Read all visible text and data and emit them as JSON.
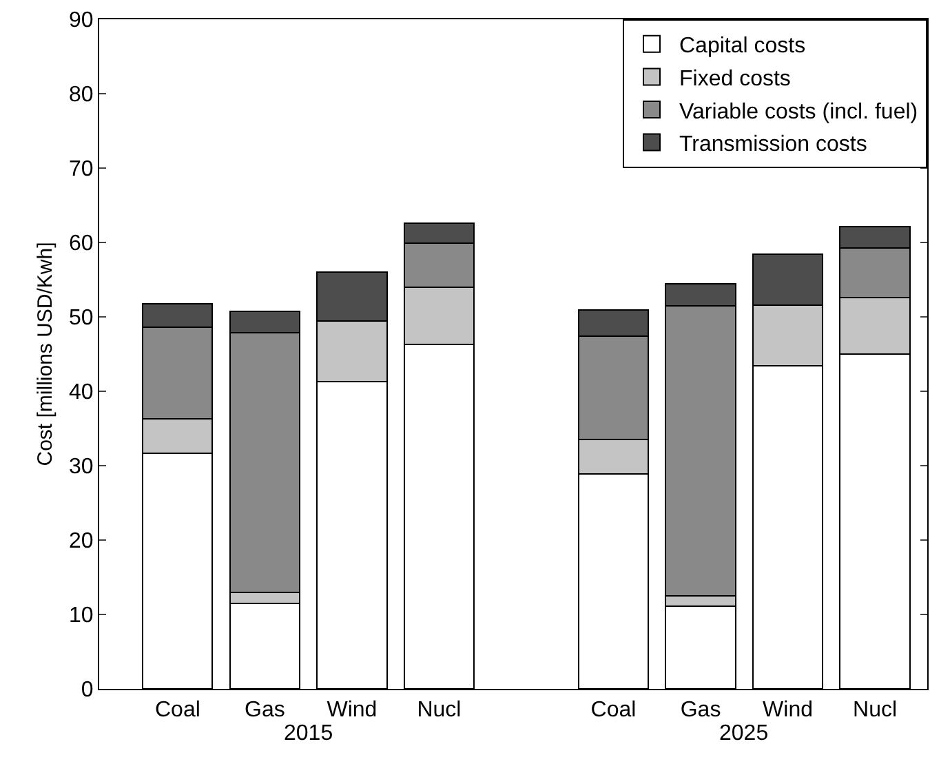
{
  "chart_data": {
    "type": "bar",
    "stacked": true,
    "ylabel": "Cost [millions USD/Kwh]",
    "categories": [
      "Coal",
      "Gas",
      "Wind",
      "Nucl",
      null,
      "Coal",
      "Gas",
      "Wind",
      "Nucl"
    ],
    "series": [
      {
        "name": "Capital costs",
        "color": "#ffffff",
        "values": [
          31.7,
          11.5,
          41.3,
          46.3,
          null,
          28.9,
          11.1,
          43.4,
          45.0
        ]
      },
      {
        "name": "Fixed costs",
        "color": "#c4c4c4",
        "values": [
          4.6,
          1.5,
          8.1,
          7.7,
          null,
          4.6,
          1.4,
          8.2,
          7.6
        ]
      },
      {
        "name": "Variable costs (incl. fuel)",
        "color": "#898989",
        "values": [
          12.3,
          34.9,
          0,
          5.9,
          null,
          13.9,
          39.0,
          0,
          6.7
        ]
      },
      {
        "name": "Transmission costs",
        "color": "#4d4d4d",
        "values": [
          3.2,
          2.8,
          6.6,
          2.7,
          null,
          3.5,
          2.9,
          6.8,
          2.8
        ]
      }
    ],
    "annotations": [
      "2015",
      "2025"
    ],
    "ylim": [
      0,
      90
    ],
    "yticks": [
      0,
      10,
      20,
      30,
      40,
      50,
      60,
      70,
      80,
      90
    ],
    "legend": "top right"
  }
}
